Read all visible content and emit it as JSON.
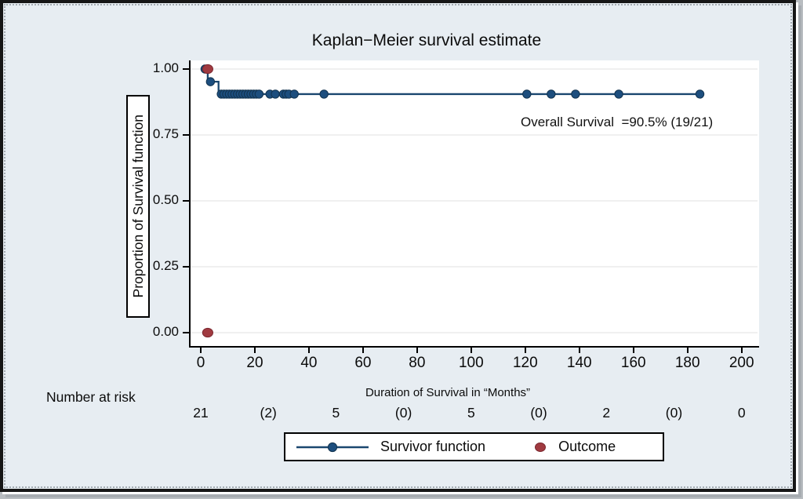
{
  "figure": {
    "background_color": "#e7edf2",
    "frame_border_color": "#161616"
  },
  "chart_data": {
    "type": "line",
    "subtype": "kaplan-meier-step",
    "title": "Kaplan−Meier survival estimate",
    "xlabel": "Duration of Survival in “Months”",
    "ylabel": "Proportion of Survival function",
    "overall_survival_label": "Overall Survival  =90.5% (19/21)",
    "xlim": [
      0,
      205
    ],
    "ylim": [
      0.0,
      1.0
    ],
    "grid": "horizontal",
    "x_ticks": [
      0,
      20,
      40,
      60,
      80,
      100,
      120,
      140,
      160,
      180,
      200
    ],
    "y_ticks": [
      {
        "v": 1.0,
        "label": "1.00"
      },
      {
        "v": 0.75,
        "label": "0.75"
      },
      {
        "v": 0.5,
        "label": "0.50"
      },
      {
        "v": 0.25,
        "label": "0.25"
      },
      {
        "v": 0.0,
        "label": "0.00"
      }
    ],
    "survivor_steps": [
      {
        "t": 0,
        "s": 1.0
      },
      {
        "t": 2,
        "s": 0.952
      },
      {
        "t": 6,
        "s": 0.905
      }
    ],
    "end_time": 184,
    "survivor_markers": [
      [
        1,
        1.0
      ],
      [
        3,
        0.952
      ],
      [
        7,
        0.905
      ],
      [
        8,
        0.905
      ],
      [
        9,
        0.905
      ],
      [
        10,
        0.905
      ],
      [
        11,
        0.905
      ],
      [
        12,
        0.905
      ],
      [
        13,
        0.905
      ],
      [
        14,
        0.905
      ],
      [
        15,
        0.905
      ],
      [
        16,
        0.905
      ],
      [
        17,
        0.905
      ],
      [
        18,
        0.905
      ],
      [
        19,
        0.905
      ],
      [
        20,
        0.905
      ],
      [
        21,
        0.905
      ],
      [
        25,
        0.905
      ],
      [
        27,
        0.905
      ],
      [
        30,
        0.905
      ],
      [
        31,
        0.905
      ],
      [
        32,
        0.905
      ],
      [
        34,
        0.905
      ],
      [
        45,
        0.905
      ],
      [
        120,
        0.905
      ],
      [
        129,
        0.905
      ],
      [
        138,
        0.905
      ],
      [
        154,
        0.905
      ],
      [
        184,
        0.905
      ]
    ],
    "outcome_markers": [
      [
        2,
        1.0
      ],
      [
        2,
        0.0
      ]
    ],
    "colors": {
      "survivor": "#1a476f",
      "survivor_fill": "#1d4e7e",
      "survivor_edge": "#12334f",
      "outcome": "#a03a40",
      "outcome_edge": "#7a262e",
      "gridline": "#ececec"
    },
    "legend": {
      "position": "bottom",
      "entries": [
        {
          "label": "Survivor function",
          "marker": "line-with-dot"
        },
        {
          "label": "Outcome",
          "marker": "dot"
        }
      ]
    },
    "risk_table": {
      "heading": "Number at risk",
      "times": [
        0,
        25,
        50,
        75,
        100,
        125,
        150,
        175,
        200
      ],
      "values": [
        "21",
        "(2)",
        "5",
        "(0)",
        "5",
        "(0)",
        "2",
        "(0)",
        "0"
      ]
    }
  }
}
